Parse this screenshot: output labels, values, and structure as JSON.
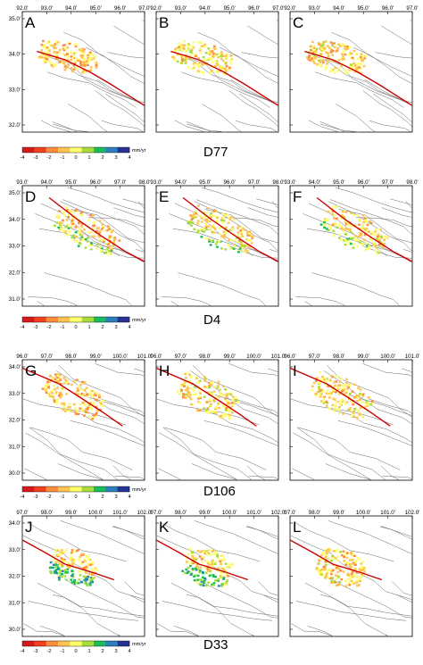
{
  "colorbar": {
    "ticks": [
      "-4",
      "-3",
      "-2",
      "-1",
      "0",
      "1",
      "2",
      "3",
      "4"
    ],
    "unit": "mm/yr",
    "colors": [
      "#d7191c",
      "#f0401e",
      "#fd8d3c",
      "#fec44f",
      "#ffff66",
      "#a6dc3c",
      "#1abc5c",
      "#2c7fb8",
      "#253494"
    ]
  },
  "groups": [
    {
      "name": "D77",
      "x_ticks": [
        "92.0'",
        "93.0'",
        "94.0'",
        "95.0'",
        "96.0'",
        "97.0'"
      ],
      "y_ticks": [
        "35.0'",
        "34.0'",
        "33.0'",
        "32.0'"
      ],
      "panels": [
        "A",
        "B",
        "C"
      ]
    },
    {
      "name": "D4",
      "x_ticks": [
        "93.0'",
        "94.0'",
        "95.0'",
        "96.0'",
        "97.0'",
        "98.0'"
      ],
      "y_ticks": [
        "35.0'",
        "34.0'",
        "33.0'",
        "32.0'",
        "31.0'"
      ],
      "panels": [
        "D",
        "E",
        "F"
      ]
    },
    {
      "name": "D106",
      "x_ticks": [
        "96.0'",
        "97.0'",
        "98.0'",
        "99.0'",
        "100.0'",
        "101.0'"
      ],
      "y_ticks": [
        "34.0'",
        "33.0'",
        "32.0'",
        "31.0'",
        "30.0'"
      ],
      "panels": [
        "G",
        "H",
        "I"
      ]
    },
    {
      "name": "D33",
      "x_ticks": [
        "97.0'",
        "98.0'",
        "99.0'",
        "100.0'",
        "101.0'",
        "102.0'"
      ],
      "y_ticks": [
        "34.0'",
        "33.0'",
        "32.0'",
        "31.0'",
        "30.0'"
      ],
      "panels": [
        "J",
        "K",
        "L"
      ]
    }
  ]
}
